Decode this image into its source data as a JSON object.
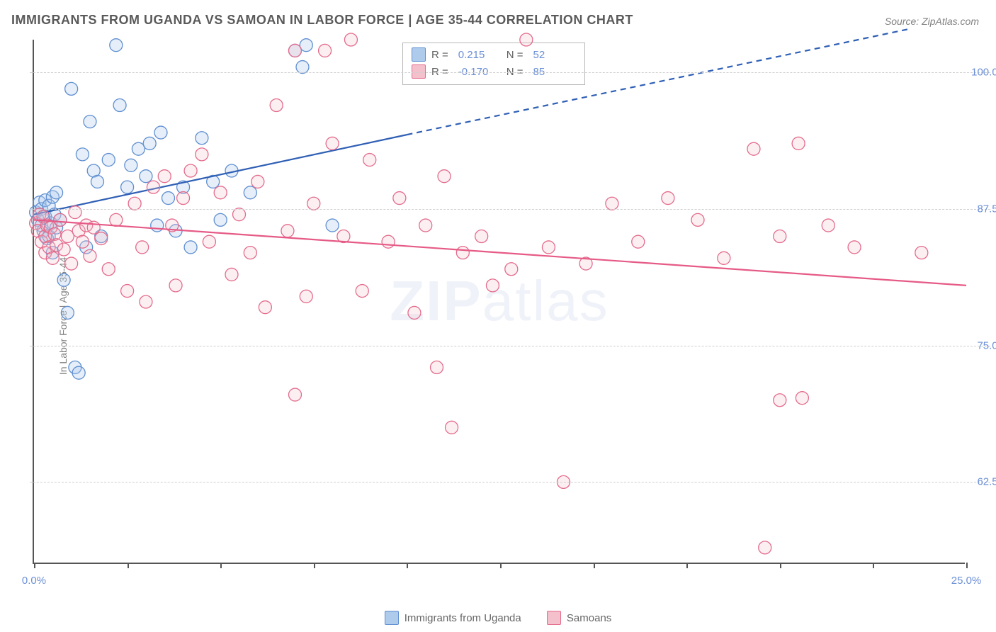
{
  "title": "IMMIGRANTS FROM UGANDA VS SAMOAN IN LABOR FORCE | AGE 35-44 CORRELATION CHART",
  "source_label": "Source: ZipAtlas.com",
  "ylabel": "In Labor Force | Age 35-44",
  "watermark": {
    "bold": "ZIP",
    "rest": "atlas"
  },
  "chart": {
    "type": "scatter",
    "xlim": [
      0,
      25
    ],
    "ylim": [
      55,
      103
    ],
    "x_ticks": [
      0,
      2.5,
      5,
      7.5,
      10,
      12.5,
      15,
      17.5,
      20,
      22.5,
      25
    ],
    "x_tick_labels": {
      "0": "0.0%",
      "25": "25.0%"
    },
    "y_grid": [
      62.5,
      75,
      87.5,
      100
    ],
    "y_tick_labels": {
      "62.5": "62.5%",
      "75": "75.0%",
      "87.5": "87.5%",
      "100": "100.0%"
    },
    "background_color": "#ffffff",
    "grid_color": "#cfcfcf",
    "axis_color": "#555555",
    "marker_radius": 9,
    "series": [
      {
        "key": "a",
        "label": "Immigrants from Uganda",
        "fill": "#aecbec",
        "stroke": "#5f8fd1",
        "r": 0.215,
        "n": 52,
        "trend": {
          "x1": 0,
          "y1": 87.0,
          "x2": 10.0,
          "y2": 94.3,
          "x2_ext": 23.5,
          "y2_ext": 104.0,
          "color": "#2f5fb5",
          "width": 2.2
        },
        "points": [
          [
            0.05,
            87.2
          ],
          [
            0.1,
            86.5
          ],
          [
            0.15,
            88.1
          ],
          [
            0.2,
            87.5
          ],
          [
            0.2,
            86.0
          ],
          [
            0.25,
            85.5
          ],
          [
            0.3,
            88.3
          ],
          [
            0.3,
            86.8
          ],
          [
            0.35,
            84.8
          ],
          [
            0.4,
            87.8
          ],
          [
            0.4,
            85.0
          ],
          [
            0.45,
            86.2
          ],
          [
            0.5,
            88.6
          ],
          [
            0.5,
            83.5
          ],
          [
            0.55,
            87.0
          ],
          [
            0.6,
            85.8
          ],
          [
            0.6,
            89.0
          ],
          [
            0.7,
            86.5
          ],
          [
            0.8,
            81.0
          ],
          [
            0.9,
            78.0
          ],
          [
            1.0,
            98.5
          ],
          [
            1.1,
            73.0
          ],
          [
            1.2,
            72.5
          ],
          [
            1.3,
            92.5
          ],
          [
            1.4,
            84.0
          ],
          [
            1.5,
            95.5
          ],
          [
            1.6,
            91.0
          ],
          [
            1.7,
            90.0
          ],
          [
            1.8,
            85.0
          ],
          [
            2.0,
            92.0
          ],
          [
            2.2,
            102.5
          ],
          [
            2.3,
            97.0
          ],
          [
            2.5,
            89.5
          ],
          [
            2.6,
            91.5
          ],
          [
            2.8,
            93.0
          ],
          [
            3.0,
            90.5
          ],
          [
            3.1,
            93.5
          ],
          [
            3.3,
            86.0
          ],
          [
            3.4,
            94.5
          ],
          [
            3.6,
            88.5
          ],
          [
            3.8,
            85.5
          ],
          [
            4.0,
            89.5
          ],
          [
            4.2,
            84.0
          ],
          [
            4.5,
            94.0
          ],
          [
            4.8,
            90.0
          ],
          [
            5.0,
            86.5
          ],
          [
            5.3,
            91.0
          ],
          [
            5.8,
            89.0
          ],
          [
            7.0,
            102.0
          ],
          [
            7.2,
            100.5
          ],
          [
            7.3,
            102.5
          ],
          [
            8.0,
            86.0
          ]
        ]
      },
      {
        "key": "b",
        "label": "Samoans",
        "fill": "#f4c0cc",
        "stroke": "#e46b8c",
        "r": -0.17,
        "n": 85,
        "trend": {
          "x1": 0,
          "y1": 86.5,
          "x2": 25,
          "y2": 80.5,
          "color": "#e65a86",
          "width": 2.2
        },
        "points": [
          [
            0.05,
            86.2
          ],
          [
            0.1,
            85.5
          ],
          [
            0.15,
            87.0
          ],
          [
            0.2,
            84.5
          ],
          [
            0.25,
            86.8
          ],
          [
            0.3,
            85.0
          ],
          [
            0.3,
            83.5
          ],
          [
            0.35,
            86.0
          ],
          [
            0.4,
            84.0
          ],
          [
            0.45,
            85.8
          ],
          [
            0.5,
            83.0
          ],
          [
            0.55,
            85.2
          ],
          [
            0.6,
            84.2
          ],
          [
            0.7,
            86.5
          ],
          [
            0.8,
            83.8
          ],
          [
            0.9,
            85.0
          ],
          [
            1.0,
            82.5
          ],
          [
            1.1,
            87.2
          ],
          [
            1.2,
            85.5
          ],
          [
            1.3,
            84.5
          ],
          [
            1.4,
            86.0
          ],
          [
            1.5,
            83.2
          ],
          [
            1.6,
            85.8
          ],
          [
            1.8,
            84.8
          ],
          [
            2.0,
            82.0
          ],
          [
            2.2,
            86.5
          ],
          [
            2.5,
            80.0
          ],
          [
            2.7,
            88.0
          ],
          [
            2.9,
            84.0
          ],
          [
            3.0,
            79.0
          ],
          [
            3.2,
            89.5
          ],
          [
            3.5,
            90.5
          ],
          [
            3.7,
            86.0
          ],
          [
            3.8,
            80.5
          ],
          [
            4.0,
            88.5
          ],
          [
            4.2,
            91.0
          ],
          [
            4.5,
            92.5
          ],
          [
            4.7,
            84.5
          ],
          [
            5.0,
            89.0
          ],
          [
            5.3,
            81.5
          ],
          [
            5.5,
            87.0
          ],
          [
            5.8,
            83.5
          ],
          [
            6.0,
            90.0
          ],
          [
            6.2,
            78.5
          ],
          [
            6.5,
            97.0
          ],
          [
            6.8,
            85.5
          ],
          [
            7.0,
            70.5
          ],
          [
            7.0,
            102.0
          ],
          [
            7.3,
            79.5
          ],
          [
            7.5,
            88.0
          ],
          [
            7.8,
            102.0
          ],
          [
            8.0,
            93.5
          ],
          [
            8.3,
            85.0
          ],
          [
            8.5,
            103.0
          ],
          [
            8.8,
            80.0
          ],
          [
            9.0,
            92.0
          ],
          [
            9.5,
            84.5
          ],
          [
            9.8,
            88.5
          ],
          [
            10.2,
            78.0
          ],
          [
            10.5,
            86.0
          ],
          [
            10.8,
            73.0
          ],
          [
            11.0,
            90.5
          ],
          [
            11.2,
            67.5
          ],
          [
            11.5,
            83.5
          ],
          [
            12.0,
            85.0
          ],
          [
            12.3,
            80.5
          ],
          [
            12.8,
            82.0
          ],
          [
            13.2,
            103.0
          ],
          [
            13.8,
            84.0
          ],
          [
            14.2,
            62.5
          ],
          [
            14.8,
            82.5
          ],
          [
            15.5,
            88.0
          ],
          [
            16.2,
            84.5
          ],
          [
            17.0,
            88.5
          ],
          [
            17.8,
            86.5
          ],
          [
            18.5,
            83.0
          ],
          [
            19.3,
            93.0
          ],
          [
            19.6,
            56.5
          ],
          [
            20.0,
            85.0
          ],
          [
            20.0,
            70.0
          ],
          [
            20.5,
            93.5
          ],
          [
            20.6,
            70.2
          ],
          [
            21.3,
            86.0
          ],
          [
            22.0,
            84.0
          ],
          [
            23.8,
            83.5
          ]
        ]
      }
    ]
  },
  "legend_top_prefix_r": "R =",
  "legend_top_prefix_n": "N ="
}
